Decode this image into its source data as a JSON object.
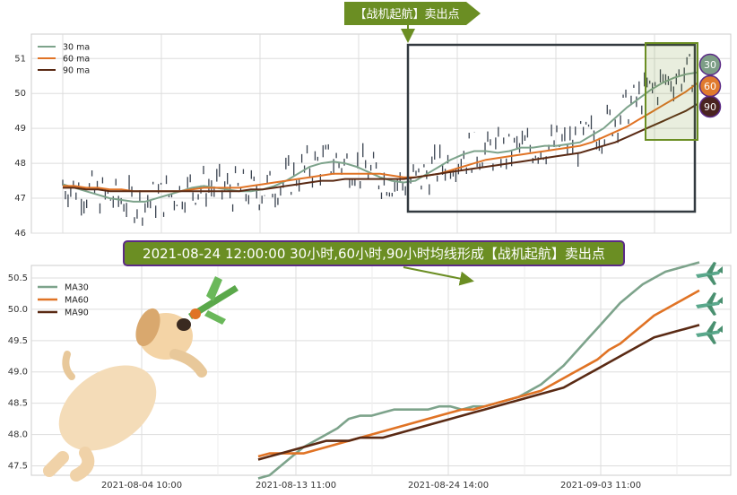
{
  "top_banner": {
    "text": "【战机起航】卖出点",
    "color": "#6b8e23"
  },
  "mid_banner": {
    "text": "2021-08-24 12:00:00 30小时,60小时,90小时均线形成【战机起航】卖出点",
    "fill": "#6b8e23",
    "border": "#5b2a86"
  },
  "badges": [
    {
      "label": "30",
      "color": "#7d9e86"
    },
    {
      "label": "60",
      "color": "#e07a2e"
    },
    {
      "label": "90",
      "color": "#4a2320"
    }
  ],
  "colors": {
    "ma30": "#7da38b",
    "ma60": "#e07325",
    "ma90": "#5a2a14",
    "candle": "#3a4350",
    "zone": "#6b8e23",
    "box": "#333a40"
  },
  "icons": {
    "dog": "dog-illustration-icon",
    "plane": "fighter-plane-icon"
  },
  "chart_data": [
    {
      "type": "line",
      "ylim": [
        46,
        51.7
      ],
      "yticks": [
        46,
        47,
        48,
        49,
        50,
        51
      ],
      "grid": true,
      "legend": "top-left",
      "series": [
        {
          "name": "30 ma",
          "color": "#7da38b",
          "values": [
            47.4,
            47.3,
            47.2,
            47.1,
            47.0,
            46.95,
            46.9,
            46.9,
            47.0,
            47.1,
            47.2,
            47.3,
            47.35,
            47.3,
            47.25,
            47.2,
            47.2,
            47.25,
            47.35,
            47.5,
            47.7,
            47.9,
            48.0,
            48.05,
            48.0,
            47.9,
            47.75,
            47.6,
            47.5,
            47.45,
            47.5,
            47.7,
            47.9,
            48.1,
            48.25,
            48.35,
            48.35,
            48.3,
            48.35,
            48.45,
            48.45,
            48.5,
            48.5,
            48.55,
            48.6,
            48.8,
            49.0,
            49.3,
            49.6,
            49.85,
            50.1,
            50.3,
            50.45,
            50.55,
            50.6
          ]
        },
        {
          "name": "60 ma",
          "color": "#e07325",
          "values": [
            47.35,
            47.35,
            47.3,
            47.3,
            47.25,
            47.25,
            47.2,
            47.2,
            47.2,
            47.2,
            47.2,
            47.25,
            47.3,
            47.3,
            47.3,
            47.3,
            47.35,
            47.4,
            47.45,
            47.5,
            47.55,
            47.6,
            47.65,
            47.7,
            47.7,
            47.7,
            47.7,
            47.7,
            47.65,
            47.6,
            47.6,
            47.65,
            47.7,
            47.8,
            47.9,
            48.0,
            48.1,
            48.15,
            48.2,
            48.25,
            48.3,
            48.35,
            48.4,
            48.45,
            48.5,
            48.6,
            48.75,
            48.9,
            49.05,
            49.25,
            49.45,
            49.65,
            49.85,
            50.05,
            50.3
          ]
        },
        {
          "name": "90 ma",
          "color": "#5a2a14",
          "values": [
            47.3,
            47.3,
            47.25,
            47.25,
            47.2,
            47.2,
            47.2,
            47.2,
            47.2,
            47.2,
            47.2,
            47.2,
            47.2,
            47.2,
            47.2,
            47.2,
            47.25,
            47.25,
            47.3,
            47.35,
            47.4,
            47.45,
            47.5,
            47.5,
            47.55,
            47.55,
            47.55,
            47.55,
            47.55,
            47.55,
            47.6,
            47.65,
            47.7,
            47.75,
            47.8,
            47.85,
            47.9,
            47.95,
            48.0,
            48.05,
            48.1,
            48.15,
            48.2,
            48.25,
            48.3,
            48.4,
            48.5,
            48.6,
            48.75,
            48.9,
            49.05,
            49.2,
            49.35,
            49.5,
            49.7
          ]
        }
      ]
    },
    {
      "type": "line",
      "ylim": [
        47.35,
        50.7
      ],
      "yticks": [
        47.5,
        48.0,
        48.5,
        49.0,
        49.5,
        50.0,
        50.5
      ],
      "xtick_labels": [
        "2021-08-04 10:00",
        "2021-08-13 11:00",
        "2021-08-24 14:00",
        "2021-09-03 11:00"
      ],
      "grid": true,
      "legend": "top-left",
      "series": [
        {
          "name": "MA30",
          "color": "#7da38b",
          "values": [
            47.3,
            47.35,
            47.5,
            47.65,
            47.8,
            47.9,
            48.0,
            48.1,
            48.25,
            48.3,
            48.3,
            48.35,
            48.4,
            48.4,
            48.4,
            48.4,
            48.45,
            48.45,
            48.4,
            48.45,
            48.45,
            48.5,
            48.55,
            48.6,
            48.7,
            48.8,
            48.95,
            49.1,
            49.3,
            49.5,
            49.7,
            49.9,
            50.1,
            50.25,
            50.4,
            50.5,
            50.6,
            50.65,
            50.7,
            50.75
          ]
        },
        {
          "name": "MA60",
          "color": "#e07325",
          "values": [
            47.65,
            47.7,
            47.7,
            47.7,
            47.7,
            47.75,
            47.8,
            47.85,
            47.9,
            47.95,
            48.0,
            48.05,
            48.1,
            48.15,
            48.2,
            48.25,
            48.3,
            48.35,
            48.4,
            48.4,
            48.45,
            48.5,
            48.55,
            48.6,
            48.65,
            48.7,
            48.8,
            48.9,
            49.0,
            49.1,
            49.2,
            49.35,
            49.45,
            49.6,
            49.75,
            49.9,
            50.0,
            50.1,
            50.2,
            50.3
          ]
        },
        {
          "name": "MA90",
          "color": "#5a2a14",
          "values": [
            47.6,
            47.65,
            47.7,
            47.75,
            47.8,
            47.85,
            47.9,
            47.9,
            47.9,
            47.95,
            47.95,
            47.95,
            48.0,
            48.05,
            48.1,
            48.15,
            48.2,
            48.25,
            48.3,
            48.35,
            48.4,
            48.45,
            48.5,
            48.55,
            48.6,
            48.65,
            48.7,
            48.75,
            48.85,
            48.95,
            49.05,
            49.15,
            49.25,
            49.35,
            49.45,
            49.55,
            49.6,
            49.65,
            49.7,
            49.75
          ]
        }
      ]
    }
  ]
}
